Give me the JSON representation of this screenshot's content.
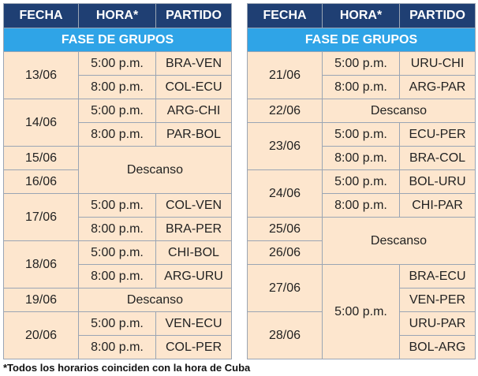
{
  "headers": {
    "date": "FECHA",
    "time": "HORA*",
    "match": "PARTIDO"
  },
  "section_title": "FASE DE GRUPOS",
  "left": {
    "d1306": "13/06",
    "t1306a": "5:00 p.m.",
    "m1306a": "BRA-VEN",
    "t1306b": "8:00 p.m.",
    "m1306b": "COL-ECU",
    "d1406": "14/06",
    "t1406a": "5:00 p.m.",
    "m1406a": "ARG-CHI",
    "t1406b": "8:00 p.m.",
    "m1406b": "PAR-BOL",
    "d1506": "15/06",
    "d1606": "16/06",
    "rest1516": "Descanso",
    "d1706": "17/06",
    "t1706a": "5:00 p.m.",
    "m1706a": "COL-VEN",
    "t1706b": "8:00 p.m.",
    "m1706b": "BRA-PER",
    "d1806": "18/06",
    "t1806a": "5:00 p.m.",
    "m1806a": "CHI-BOL",
    "t1806b": "8:00 p.m.",
    "m1806b": "ARG-URU",
    "d1906": "19/06",
    "rest19": "Descanso",
    "d2006": "20/06",
    "t2006a": "5:00 p.m.",
    "m2006a": "VEN-ECU",
    "t2006b": "8:00 p.m.",
    "m2006b": "COL-PER"
  },
  "right": {
    "d2106": "21/06",
    "t2106a": "5:00 p.m.",
    "m2106a": "URU-CHI",
    "t2106b": "8:00 p.m.",
    "m2106b": "ARG-PAR",
    "d2206": "22/06",
    "rest22": "Descanso",
    "d2306": "23/06",
    "t2306a": "5:00 p.m.",
    "m2306a": "ECU-PER",
    "t2306b": "8:00 p.m.",
    "m2306b": "BRA-COL",
    "d2406": "24/06",
    "t2406a": "5:00 p.m.",
    "m2406a": "BOL-URU",
    "t2406b": "8:00 p.m.",
    "m2406b": "CHI-PAR",
    "d2506": "25/06",
    "d2606": "26/06",
    "rest2526": "Descanso",
    "d2706": "27/06",
    "d2806": "28/06",
    "t2728": "5:00 p.m.",
    "m2706a": "BRA-ECU",
    "m2706b": "VEN-PER",
    "m2806a": "URU-PAR",
    "m2806b": "BOL-ARG"
  },
  "footnote": "*Todos los horarios coinciden con la hora de Cuba",
  "colors": {
    "header": "#1f3f73",
    "section": "#2fa4e7",
    "cell": "#fde6ce",
    "border": "#9aa5b4"
  }
}
